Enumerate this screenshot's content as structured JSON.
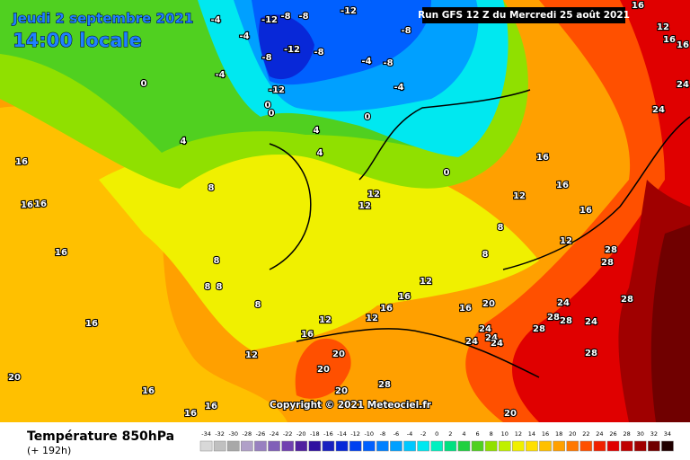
{
  "header": {
    "date": "Jeudi 2 septembre 2021",
    "time": "14:00 locale",
    "run": "Run GFS 12 Z du Mercredi 25 août 2021",
    "copyright": "Copyright © 2021 Meteociel.fr"
  },
  "footer": {
    "title": "Température 850hPa",
    "lead": "(+ 192h)"
  },
  "legend": {
    "values": [
      -34,
      -32,
      -30,
      -28,
      -26,
      -24,
      -22,
      -20,
      -18,
      -16,
      -14,
      -12,
      -10,
      -8,
      -6,
      -4,
      -2,
      0,
      2,
      4,
      6,
      8,
      10,
      12,
      14,
      16,
      18,
      20,
      22,
      24,
      26,
      28,
      30,
      32,
      34
    ],
    "colors": [
      "#d8d8d8",
      "#c0c0c0",
      "#a8a8a8",
      "#b0a0c8",
      "#9880c0",
      "#8060b8",
      "#7040b0",
      "#5020a0",
      "#3010a0",
      "#1820c0",
      "#0828d8",
      "#0040f0",
      "#0060ff",
      "#0080ff",
      "#00a0ff",
      "#00c8ff",
      "#00e8f0",
      "#00f0c0",
      "#00e080",
      "#20d040",
      "#50d020",
      "#90e000",
      "#c0f000",
      "#f0f000",
      "#ffe000",
      "#ffc000",
      "#ffa000",
      "#ff7800",
      "#ff5000",
      "#f02000",
      "#e00000",
      "#c00000",
      "#a00000",
      "#700000",
      "#200000"
    ]
  },
  "contour_labels": [
    -4,
    -12,
    -8,
    -8,
    -12,
    -4,
    -12,
    -8,
    -8,
    -12,
    0,
    0,
    -8,
    -8,
    -4,
    -4,
    0,
    0,
    -4,
    4,
    4,
    4,
    0,
    8,
    12,
    12,
    12,
    16,
    16,
    16,
    12,
    8,
    8,
    8,
    8,
    8,
    8,
    16,
    16,
    16,
    16,
    16,
    12,
    12,
    16,
    12,
    16,
    16,
    20,
    28,
    28,
    28,
    24,
    28,
    28,
    24,
    28,
    24,
    24,
    24,
    24,
    16,
    20,
    20,
    12,
    16,
    16,
    16,
    20,
    28,
    20,
    20,
    28,
    24,
    24,
    16,
    16,
    12,
    16
  ]
}
